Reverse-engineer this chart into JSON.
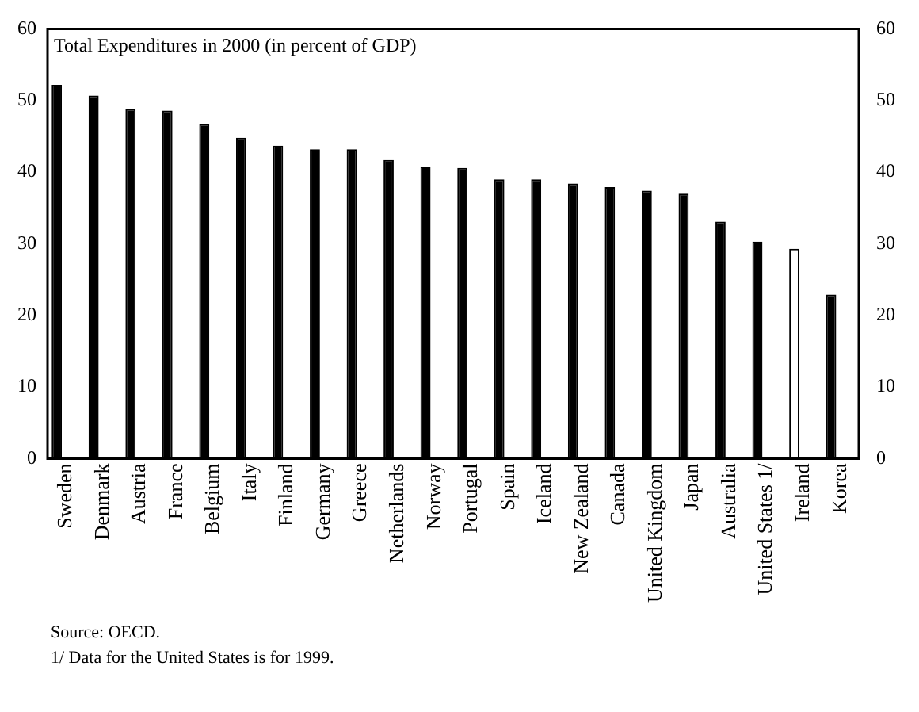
{
  "chart_data": {
    "type": "bar",
    "title": "Total Expenditures in 2000 (in percent of GDP)",
    "categories": [
      "Sweden",
      "Denmark",
      "Austria",
      "France",
      "Belgium",
      "Italy",
      "Finland",
      "Germany",
      "Greece",
      "Netherlands",
      "Norway",
      "Portugal",
      "Spain",
      "Iceland",
      "New Zealand",
      "Canada",
      "United Kingdom",
      "Japan",
      "Australia",
      "United States 1/",
      "Ireland",
      "Korea"
    ],
    "values": [
      52.2,
      50.7,
      48.8,
      48.6,
      46.7,
      44.8,
      43.7,
      43.2,
      43.2,
      41.7,
      40.8,
      40.6,
      39.0,
      39.0,
      38.4,
      37.9,
      37.4,
      37.0,
      33.1,
      30.3,
      29.3,
      22.9
    ],
    "colors": [
      "#000000",
      "#000000",
      "#000000",
      "#000000",
      "#000000",
      "#000000",
      "#000000",
      "#000000",
      "#000000",
      "#000000",
      "#000000",
      "#000000",
      "#000000",
      "#000000",
      "#000000",
      "#000000",
      "#000000",
      "#000000",
      "#000000",
      "#000000",
      "#ffffff",
      "#000000"
    ],
    "ylim": [
      0,
      60
    ],
    "yticks": [
      0,
      10,
      20,
      30,
      40,
      50,
      60
    ],
    "y2lim": [
      0,
      60
    ],
    "y2ticks": [
      0,
      10,
      20,
      30,
      40,
      50,
      60
    ],
    "grid": false,
    "legend": false,
    "annotations": [
      "Source: OECD.",
      "1/ Data for the United States is for 1999."
    ]
  }
}
